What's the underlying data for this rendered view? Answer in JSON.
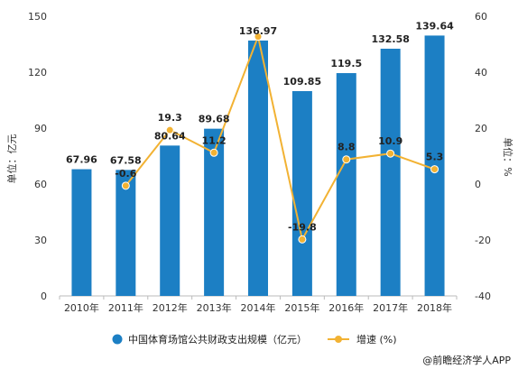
{
  "chart_data": {
    "type": "bar",
    "categories": [
      "2010年",
      "2011年",
      "2012年",
      "2013年",
      "2014年",
      "2015年",
      "2016年",
      "2017年",
      "2018年"
    ],
    "series": [
      {
        "name": "中国体育场馆公共财政支出规模（亿元）",
        "type": "bar",
        "axis": "left",
        "values": [
          67.96,
          67.58,
          80.64,
          89.68,
          136.97,
          109.85,
          119.5,
          132.58,
          139.64
        ],
        "labels": [
          "67.96",
          "67.58",
          "80.64",
          "89.68",
          "136.97",
          "109.85",
          "119.5",
          "132.58",
          "139.64"
        ]
      },
      {
        "name": "增速 (%)",
        "type": "line",
        "axis": "right",
        "values": [
          null,
          -0.6,
          19.3,
          11.2,
          52.7,
          -19.8,
          8.8,
          10.9,
          5.3
        ],
        "labels": [
          "",
          "-0.6",
          "19.3",
          "11.2",
          "",
          "-19.8",
          "8.8",
          "10.9",
          "5.3"
        ]
      }
    ],
    "ylabel": "单位：亿元",
    "y2label": "单位：%",
    "ylim": [
      0,
      150
    ],
    "yticks": [
      "0",
      "30",
      "60",
      "90",
      "120",
      "150"
    ],
    "y2lim": [
      -40,
      60
    ],
    "y2ticks": [
      "-40",
      "-20",
      "0",
      "20",
      "40",
      "60"
    ],
    "grid": false,
    "legend_position": "bottom",
    "colors": {
      "bar": "#1c7fc4",
      "line": "#f2b233"
    }
  },
  "source_credit": "@前瞻经济学人APP"
}
